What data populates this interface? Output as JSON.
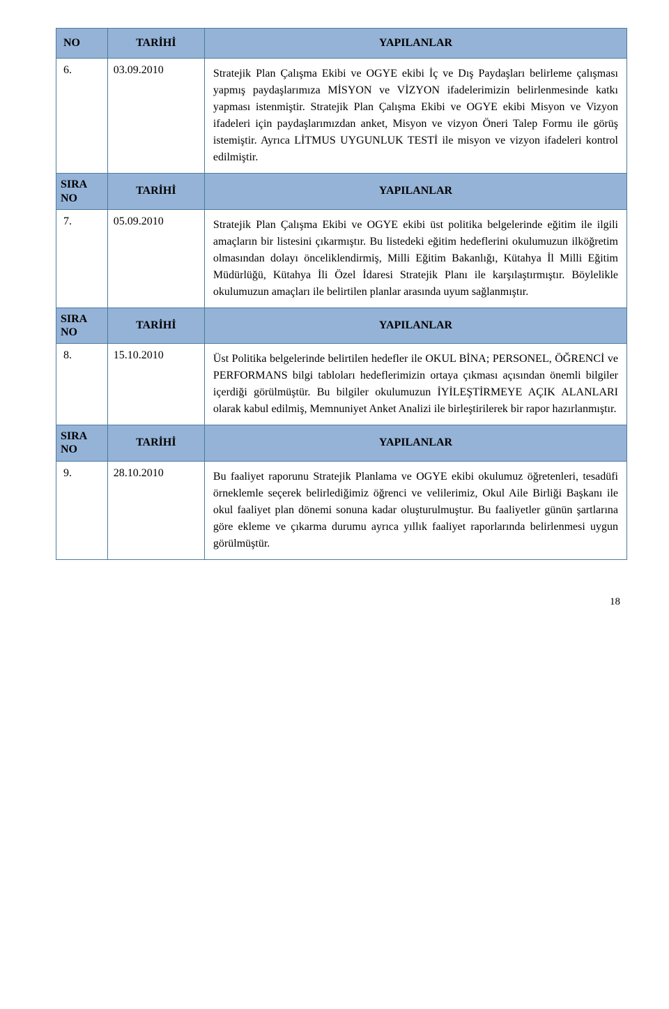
{
  "colors": {
    "headerBg": "#95b3d7",
    "border": "#4a7a9a",
    "text": "#000000",
    "pageBg": "#ffffff"
  },
  "typography": {
    "fontFamily": "Times New Roman",
    "bodyFontSize": 16,
    "headerWeight": "bold"
  },
  "columnHeaders": {
    "no": "NO",
    "siraNo": "SIRA\nNO",
    "tarihi": "TARİHİ",
    "yapilanlar": "YAPILANLAR"
  },
  "rows": [
    {
      "no": "6.",
      "date": "03.09.2010",
      "content": "Stratejik Plan Çalışma Ekibi ve OGYE ekibi İç ve Dış Paydaşları belirleme çalışması yapmış paydaşlarımıza MİSYON ve VİZYON ifadelerimizin belirlenmesinde katkı yapması istenmiştir. Stratejik Plan Çalışma Ekibi ve OGYE ekibi Misyon ve Vizyon ifadeleri için paydaşlarımızdan anket, Misyon ve vizyon Öneri Talep Formu ile görüş istemiştir. Ayrıca LİTMUS UYGUNLUK TESTİ ile misyon ve vizyon ifadeleri kontrol edilmiştir."
    },
    {
      "no": "7.",
      "date": "05.09.2010",
      "content": "Stratejik Plan Çalışma Ekibi ve OGYE ekibi üst politika belgelerinde eğitim ile ilgili amaçların bir listesini çıkarmıştır. Bu listedeki eğitim hedeflerini okulumuzun ilköğretim olmasından dolayı önceliklendirmiş, Milli Eğitim Bakanlığı, Kütahya İl Milli Eğitim Müdürlüğü, Kütahya İli Özel İdaresi Stratejik Planı ile karşılaştırmıştır. Böylelikle okulumuzun amaçları ile belirtilen planlar arasında uyum sağlanmıştır."
    },
    {
      "no": "8.",
      "date": "15.10.2010",
      "content": "Üst Politika belgelerinde belirtilen hedefler ile  OKUL BİNA; PERSONEL, ÖĞRENCİ ve PERFORMANS bilgi tabloları hedeflerimizin ortaya çıkması açısından önemli bilgiler içerdiği görülmüştür. Bu bilgiler okulumuzun İYİLEŞTİRMEYE AÇIK ALANLARI olarak kabul edilmiş, Memnuniyet Anket Analizi ile birleştirilerek bir rapor hazırlanmıştır."
    },
    {
      "no": "9.",
      "date": "28.10.2010",
      "content": "Bu faaliyet raporunu Stratejik Planlama ve OGYE ekibi okulumuz öğretenleri, tesadüfi örneklemle seçerek belirlediğimiz öğrenci ve velilerimiz, Okul Aile Birliği Başkanı ile okul faaliyet plan dönemi sonuna kadar oluşturulmuştur. Bu faaliyetler günün şartlarına göre ekleme ve çıkarma durumu ayrıca yıllık faaliyet raporlarında belirlenmesi uygun görülmüştür."
    }
  ],
  "pageNumber": "18"
}
